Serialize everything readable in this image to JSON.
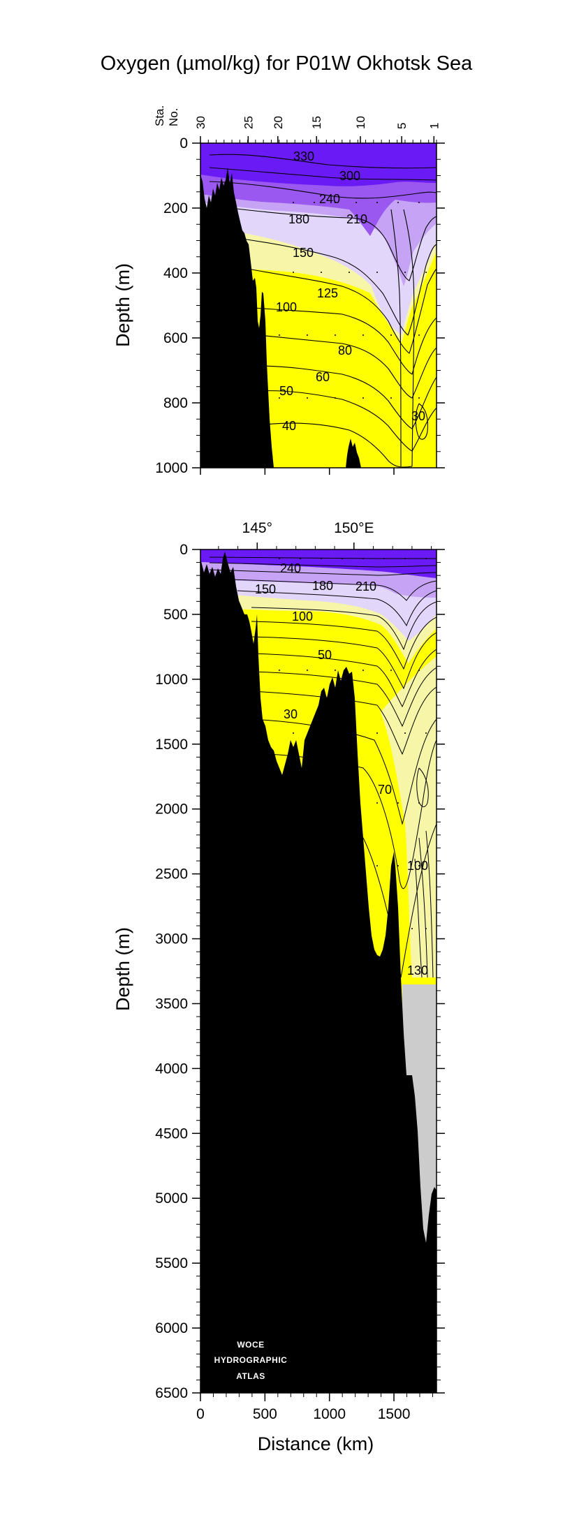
{
  "chart_data": [
    {
      "type": "contour",
      "panel": "upper",
      "title": "Oxygen (µmol/kg) for P01W Okhotsk Sea",
      "ylabel": "Depth (m)",
      "ylim": [
        0,
        1000
      ],
      "yticks": [
        "0",
        "200",
        "400",
        "600",
        "800",
        "1000"
      ],
      "station_label_line1": "Sta.",
      "station_label_line2": "No.",
      "station_ticks": [
        "30",
        "25",
        "20",
        "15",
        "10",
        "5",
        "1"
      ],
      "station_positions_km": [
        0,
        370,
        600,
        900,
        1240,
        1560,
        1810
      ],
      "contour_levels": [
        30,
        40,
        50,
        60,
        80,
        100,
        125,
        150,
        180,
        210,
        240,
        300,
        330
      ],
      "contour_labels": [
        "330",
        "300",
        "240",
        "180",
        "210",
        "150",
        "125",
        "100",
        "80",
        "60",
        "50",
        "40",
        "30"
      ],
      "colors": {
        "high": "#6a1bf5",
        "mid_high": "#9a58f0",
        "mid": "#c6a3f4",
        "mid_low": "#e3d6fb",
        "low_pale": "#f7f5a8",
        "low": "#ffff00",
        "bottom": "#000000"
      }
    },
    {
      "type": "contour",
      "panel": "lower",
      "xlabel": "Distance (km)",
      "ylabel": "Depth (m)",
      "xlim": [
        0,
        1830
      ],
      "ylim": [
        0,
        6500
      ],
      "xticks": [
        "0",
        "500",
        "1000",
        "1500"
      ],
      "yticks": [
        "0",
        "500",
        "1000",
        "1500",
        "2000",
        "2500",
        "3000",
        "3500",
        "4000",
        "4500",
        "5000",
        "5500",
        "6000",
        "6500"
      ],
      "longitude_ticks": [
        "145°",
        "150°E"
      ],
      "longitude_positions_km": [
        440,
        1190
      ],
      "contour_labels": [
        "240",
        "150",
        "180",
        "210",
        "100",
        "50",
        "30",
        "70",
        "100",
        "130"
      ],
      "no_data_below_m": 3380,
      "colors": {
        "high": "#6a1bf5",
        "mid": "#c6a3f4",
        "low": "#ffff00",
        "bottom": "#000000",
        "no_data": "#cccccc"
      }
    }
  ],
  "logo": {
    "line1": "WOCE",
    "line2": "HYDROGRAPHIC",
    "line3": "ATLAS"
  }
}
